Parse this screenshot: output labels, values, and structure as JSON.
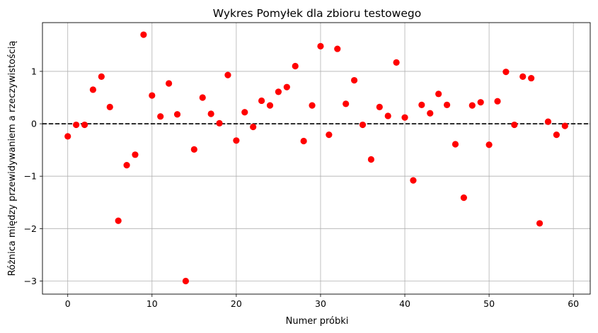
{
  "chart_data": {
    "type": "scatter",
    "title": "Wykres Pomyłek dla zbioru testowego",
    "xlabel": "Numer próbki",
    "ylabel": "Różnica między przewidywaniem a rzeczywistością",
    "xlim": [
      -3,
      62
    ],
    "ylim": [
      -3.25,
      1.93
    ],
    "xticks": [
      0,
      10,
      20,
      30,
      40,
      50,
      60
    ],
    "yticks": [
      -3,
      -2,
      -1,
      0,
      1
    ],
    "ytick_labels": [
      "−3",
      "−2",
      "−1",
      "0",
      "1"
    ],
    "grid": true,
    "reference_line": {
      "y": 0,
      "style": "dashed",
      "color": "#000000"
    },
    "marker_color": "#ff0000",
    "x": [
      0,
      1,
      2,
      3,
      4,
      5,
      6,
      7,
      8,
      9,
      10,
      11,
      12,
      13,
      14,
      15,
      16,
      17,
      18,
      19,
      20,
      21,
      22,
      23,
      24,
      25,
      26,
      27,
      28,
      29,
      30,
      31,
      32,
      33,
      34,
      35,
      36,
      37,
      38,
      39,
      40,
      41,
      42,
      43,
      44,
      45,
      46,
      47,
      48,
      49,
      50,
      51,
      52,
      53,
      54,
      55,
      56,
      57,
      58,
      59
    ],
    "y": [
      -0.24,
      -0.02,
      -0.02,
      0.65,
      0.9,
      0.32,
      -1.85,
      -0.79,
      -0.59,
      1.7,
      0.54,
      0.14,
      0.77,
      0.18,
      -3.0,
      -0.49,
      0.5,
      0.19,
      0.01,
      0.93,
      -0.32,
      0.22,
      -0.06,
      0.44,
      0.35,
      0.61,
      0.7,
      1.1,
      -0.33,
      0.35,
      1.48,
      -0.21,
      1.43,
      0.38,
      0.83,
      -0.02,
      -0.68,
      0.32,
      0.15,
      1.17,
      0.12,
      -1.08,
      0.36,
      0.2,
      0.57,
      0.36,
      -0.39,
      -1.41,
      0.35,
      0.41,
      -0.4,
      0.43,
      0.99,
      -0.02,
      0.9,
      0.87,
      -1.9,
      0.04,
      -0.21,
      -0.04
    ]
  }
}
